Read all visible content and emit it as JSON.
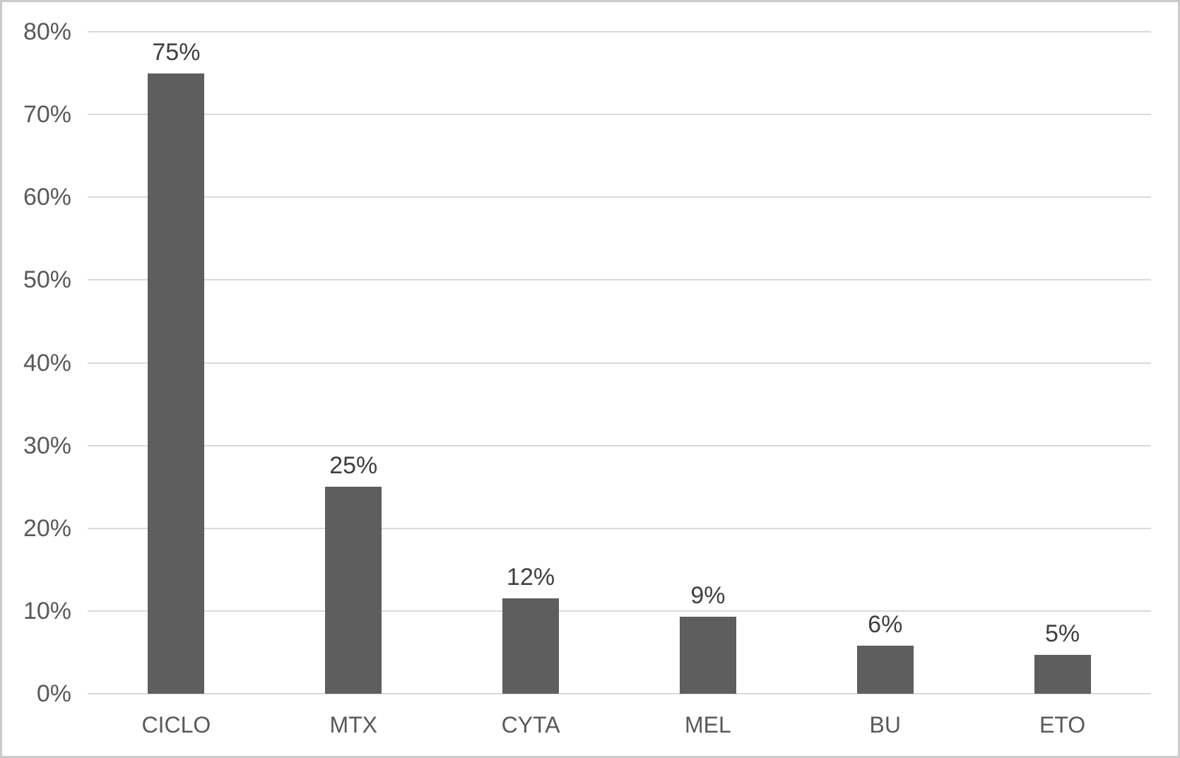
{
  "chart_data": {
    "type": "bar",
    "title": "",
    "xlabel": "",
    "ylabel": "",
    "categories": [
      "CICLO",
      "MTX",
      "CYTA",
      "MEL",
      "BU",
      "ETO"
    ],
    "values": [
      75,
      25,
      12,
      9,
      6,
      5
    ],
    "bar_display_values": [
      75,
      25,
      11.5,
      9.3,
      5.8,
      4.7
    ],
    "data_labels": [
      "75%",
      "25%",
      "12%",
      "9%",
      "6%",
      "5%"
    ],
    "y_ticks": [
      {
        "value": 0,
        "label": "0%"
      },
      {
        "value": 10,
        "label": "10%"
      },
      {
        "value": 20,
        "label": "20%"
      },
      {
        "value": 30,
        "label": "30%"
      },
      {
        "value": 40,
        "label": "40%"
      },
      {
        "value": 50,
        "label": "50%"
      },
      {
        "value": 60,
        "label": "60%"
      },
      {
        "value": 70,
        "label": "70%"
      },
      {
        "value": 80,
        "label": "80%"
      }
    ],
    "ylim": [
      0,
      80
    ],
    "grid": "horizontal",
    "legend": "none",
    "colors": {
      "bar": "#5e5e5e",
      "gridline": "#d9d9d9",
      "tick_label": "#595959",
      "data_label": "#3f3f3f",
      "frame_border": "#cbcbcb",
      "background": "#ffffff"
    }
  }
}
